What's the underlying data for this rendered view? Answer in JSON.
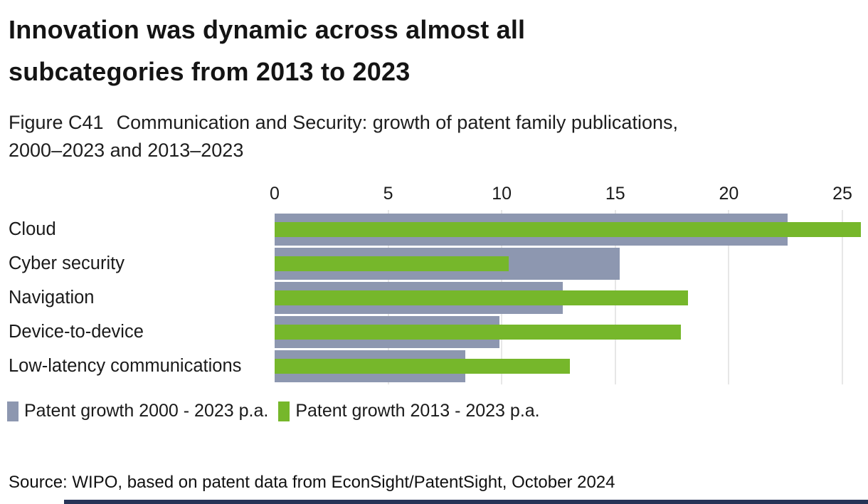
{
  "header": {
    "title_line1": "Innovation was dynamic across almost all",
    "title_line2": "subcategories from 2013 to 2023",
    "figure_label": "Figure C41",
    "subtitle_line1": "Communication and Security: growth of patent family publications,",
    "subtitle_line2": "2000–2023 and 2013–2023"
  },
  "chart_data": {
    "type": "bar",
    "orientation": "horizontal",
    "title": "Figure C41 Communication and Security: growth of patent family publications, 2000–2023 and 2013–2023",
    "categories": [
      "Cloud",
      "Cyber security",
      "Navigation",
      "Device-to-device",
      "Low-latency communications"
    ],
    "series": [
      {
        "name": "Patent growth 2000 - 2023 p.a.",
        "color": "#8d97b0",
        "values": [
          22.6,
          15.2,
          12.7,
          9.9,
          8.4
        ]
      },
      {
        "name": "Patent growth 2013 - 2023 p.a.",
        "color": "#76b72b",
        "values": [
          25.8,
          10.3,
          18.2,
          17.9,
          13.0
        ]
      }
    ],
    "x_ticks": [
      0,
      5,
      10,
      15,
      20,
      25
    ],
    "xlim": [
      0,
      26.1
    ],
    "xlabel": "",
    "ylabel": "",
    "grid": "vertical-gridlines",
    "legend_position": "bottom-left",
    "gridline_color": "#e7e7e7"
  },
  "source": "Source: WIPO, based on patent data from EconSight/PatentSight, October 2024",
  "colors": {
    "series_2000_2023": "#8d97b0",
    "series_2013_2023": "#76b72b",
    "footer_bar": "#273457",
    "text": "#1a1a1a"
  }
}
